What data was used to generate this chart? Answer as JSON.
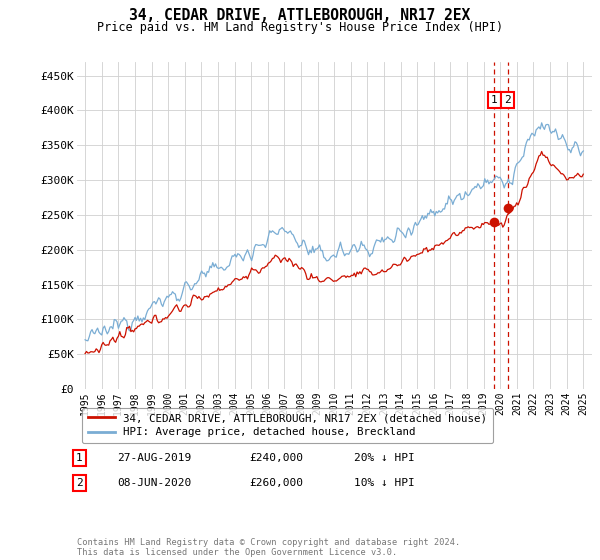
{
  "title": "34, CEDAR DRIVE, ATTLEBOROUGH, NR17 2EX",
  "subtitle": "Price paid vs. HM Land Registry's House Price Index (HPI)",
  "ylabel_ticks": [
    "£0",
    "£50K",
    "£100K",
    "£150K",
    "£200K",
    "£250K",
    "£300K",
    "£350K",
    "£400K",
    "£450K"
  ],
  "ytick_values": [
    0,
    50000,
    100000,
    150000,
    200000,
    250000,
    300000,
    350000,
    400000,
    450000
  ],
  "ylim": [
    0,
    470000
  ],
  "xlim_start": 1994.5,
  "xlim_end": 2025.5,
  "hpi_color": "#7aadd4",
  "price_color": "#cc1100",
  "dashed_color": "#cc1100",
  "ann1_x": 2019.65,
  "ann1_y": 240000,
  "ann2_x": 2020.44,
  "ann2_y": 260000,
  "legend_label1": "34, CEDAR DRIVE, ATTLEBOROUGH, NR17 2EX (detached house)",
  "legend_label2": "HPI: Average price, detached house, Breckland",
  "footer": "Contains HM Land Registry data © Crown copyright and database right 2024.\nThis data is licensed under the Open Government Licence v3.0.",
  "table_rows": [
    {
      "num": "1",
      "date": "27-AUG-2019",
      "price": "£240,000",
      "pct": "20% ↓ HPI"
    },
    {
      "num": "2",
      "date": "08-JUN-2020",
      "price": "£260,000",
      "pct": "10% ↓ HPI"
    }
  ]
}
